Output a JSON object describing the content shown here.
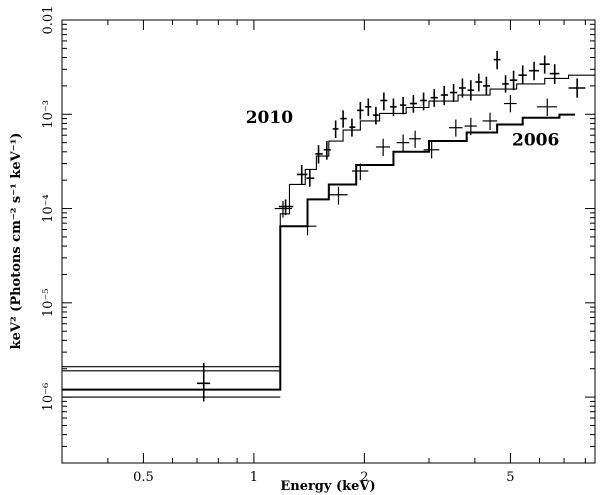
{
  "chart_data": {
    "type": "scatter",
    "title": "",
    "xlabel": "Energy (keV)",
    "ylabel": "keV² (Photons cm⁻² s⁻¹ keV⁻¹)",
    "xscale": "log",
    "yscale": "log",
    "xlim": [
      0.3,
      8.5
    ],
    "ylim": [
      2e-07,
      0.01
    ],
    "x_ticks": [
      {
        "value": 0.5,
        "label": "0.5"
      },
      {
        "value": 1,
        "label": "1"
      },
      {
        "value": 2,
        "label": "2"
      },
      {
        "value": 5,
        "label": "5"
      }
    ],
    "y_ticks": [
      {
        "value": 1e-06,
        "label": "10⁻⁶"
      },
      {
        "value": 1e-05,
        "label": "10⁻⁵"
      },
      {
        "value": 0.0001,
        "label": "10⁻⁴"
      },
      {
        "value": 0.001,
        "label": "10⁻³"
      },
      {
        "value": 0.01,
        "label": "0.01"
      }
    ],
    "annotations": [
      {
        "text": "2010",
        "x": 0.95,
        "y": 0.00093
      },
      {
        "text": "2006",
        "x": 5.05,
        "y": 0.00054
      }
    ],
    "series": [
      {
        "name": "2010",
        "points": [
          {
            "x": 0.73,
            "y": 1.4e-06,
            "xerr": [
              0.7,
              0.76
            ],
            "yerr": [
              9e-07,
              2.3e-06
            ]
          },
          {
            "x": 1.22,
            "y": 0.000105,
            "xerr": [
              1.17,
              1.28
            ],
            "yerr": [
              8.5e-05,
              0.000125
            ]
          },
          {
            "x": 1.35,
            "y": 0.00023,
            "xerr": [
              1.31,
              1.4
            ],
            "yerr": [
              0.00018,
              0.00029
            ]
          },
          {
            "x": 1.42,
            "y": 0.00021,
            "xerr": [
              1.39,
              1.46
            ],
            "yerr": [
              0.00017,
              0.00026
            ]
          },
          {
            "x": 1.5,
            "y": 0.00038,
            "xerr": [
              1.47,
              1.54
            ],
            "yerr": [
              0.0003,
              0.00047
            ]
          },
          {
            "x": 1.58,
            "y": 0.00042,
            "xerr": [
              1.55,
              1.62
            ],
            "yerr": [
              0.00033,
              0.00052
            ]
          },
          {
            "x": 1.67,
            "y": 0.0007,
            "xerr": [
              1.64,
              1.7
            ],
            "yerr": [
              0.00056,
              0.00086
            ]
          },
          {
            "x": 1.75,
            "y": 0.0009,
            "xerr": [
              1.72,
              1.79
            ],
            "yerr": [
              0.00072,
              0.0011
            ]
          },
          {
            "x": 1.85,
            "y": 0.00073,
            "xerr": [
              1.82,
              1.89
            ],
            "yerr": [
              0.00058,
              0.0009
            ]
          },
          {
            "x": 1.95,
            "y": 0.0011,
            "xerr": [
              1.91,
              1.99
            ],
            "yerr": [
              0.00088,
              0.00135
            ]
          },
          {
            "x": 2.05,
            "y": 0.0012,
            "xerr": [
              2.01,
              2.09
            ],
            "yerr": [
              0.00096,
              0.00147
            ]
          },
          {
            "x": 2.15,
            "y": 0.00098,
            "xerr": [
              2.11,
              2.19
            ],
            "yerr": [
              0.00078,
              0.0012
            ]
          },
          {
            "x": 2.26,
            "y": 0.0014,
            "xerr": [
              2.21,
              2.31
            ],
            "yerr": [
              0.0011,
              0.0017
            ]
          },
          {
            "x": 2.4,
            "y": 0.0012,
            "xerr": [
              2.35,
              2.45
            ],
            "yerr": [
              0.00096,
              0.00147
            ]
          },
          {
            "x": 2.55,
            "y": 0.00125,
            "xerr": [
              2.5,
              2.6
            ],
            "yerr": [
              0.001,
              0.00153
            ]
          },
          {
            "x": 2.72,
            "y": 0.0013,
            "xerr": [
              2.66,
              2.78
            ],
            "yerr": [
              0.00104,
              0.0016
            ]
          },
          {
            "x": 2.9,
            "y": 0.0014,
            "xerr": [
              2.84,
              2.96
            ],
            "yerr": [
              0.0011,
              0.0017
            ]
          },
          {
            "x": 3.1,
            "y": 0.0015,
            "xerr": [
              3.03,
              3.17
            ],
            "yerr": [
              0.0012,
              0.00185
            ]
          },
          {
            "x": 3.3,
            "y": 0.0016,
            "xerr": [
              3.23,
              3.38
            ],
            "yerr": [
              0.00125,
              0.002
            ]
          },
          {
            "x": 3.5,
            "y": 0.0017,
            "xerr": [
              3.42,
              3.58
            ],
            "yerr": [
              0.00135,
              0.0021
            ]
          },
          {
            "x": 3.7,
            "y": 0.0019,
            "xerr": [
              3.62,
              3.78
            ],
            "yerr": [
              0.0015,
              0.0024
            ]
          },
          {
            "x": 3.9,
            "y": 0.0018,
            "xerr": [
              3.82,
              3.98
            ],
            "yerr": [
              0.0014,
              0.0023
            ]
          },
          {
            "x": 4.1,
            "y": 0.0022,
            "xerr": [
              4.01,
              4.19
            ],
            "yerr": [
              0.00175,
              0.0027
            ]
          },
          {
            "x": 4.3,
            "y": 0.002,
            "xerr": [
              4.21,
              4.4
            ],
            "yerr": [
              0.0016,
              0.0025
            ]
          },
          {
            "x": 4.6,
            "y": 0.0038,
            "xerr": [
              4.5,
              4.7
            ],
            "yerr": [
              0.003,
              0.0047
            ]
          },
          {
            "x": 4.85,
            "y": 0.0021,
            "xerr": [
              4.75,
              4.95
            ],
            "yerr": [
              0.0017,
              0.0026
            ]
          },
          {
            "x": 5.1,
            "y": 0.0023,
            "xerr": [
              4.98,
              5.22
            ],
            "yerr": [
              0.0018,
              0.0029
            ]
          },
          {
            "x": 5.4,
            "y": 0.0026,
            "xerr": [
              5.26,
              5.54
            ],
            "yerr": [
              0.0021,
              0.0033
            ]
          },
          {
            "x": 5.8,
            "y": 0.0029,
            "xerr": [
              5.62,
              5.98
            ],
            "yerr": [
              0.0023,
              0.0036
            ]
          },
          {
            "x": 6.2,
            "y": 0.0034,
            "xerr": [
              6.0,
              6.4
            ],
            "yerr": [
              0.0027,
              0.0042
            ]
          },
          {
            "x": 6.6,
            "y": 0.0027,
            "xerr": [
              6.4,
              6.8
            ],
            "yerr": [
              0.0021,
              0.0034
            ]
          },
          {
            "x": 7.6,
            "y": 0.0019,
            "xerr": [
              7.2,
              8.0
            ],
            "yerr": [
              0.0015,
              0.0024
            ]
          }
        ],
        "model": [
          {
            "x0": 0.3,
            "x1": 1.18,
            "y": 1.9e-06
          },
          {
            "x0": 1.18,
            "x1": 1.25,
            "y": 8.8e-05
          },
          {
            "x0": 1.25,
            "x1": 1.38,
            "y": 0.00018
          },
          {
            "x0": 1.38,
            "x1": 1.48,
            "y": 0.00026
          },
          {
            "x0": 1.48,
            "x1": 1.6,
            "y": 0.00036
          },
          {
            "x0": 1.6,
            "x1": 1.75,
            "y": 0.00052
          },
          {
            "x0": 1.75,
            "x1": 1.95,
            "y": 0.00068
          },
          {
            "x0": 1.95,
            "x1": 2.2,
            "y": 0.00085
          },
          {
            "x0": 2.2,
            "x1": 2.6,
            "y": 0.00102
          },
          {
            "x0": 2.6,
            "x1": 3.0,
            "y": 0.00118
          },
          {
            "x0": 3.0,
            "x1": 3.6,
            "y": 0.00138
          },
          {
            "x0": 3.6,
            "x1": 4.4,
            "y": 0.0016
          },
          {
            "x0": 4.4,
            "x1": 5.2,
            "y": 0.00185
          },
          {
            "x0": 5.2,
            "x1": 6.2,
            "y": 0.0021
          },
          {
            "x0": 6.2,
            "x1": 7.2,
            "y": 0.0024
          },
          {
            "x0": 7.2,
            "x1": 8.5,
            "y": 0.0026
          }
        ]
      },
      {
        "name": "2006",
        "points": [
          {
            "x": 1.2,
            "y": 0.0001,
            "xerr": [
              1.14,
              1.27
            ],
            "yerr": [
              8e-05,
              0.00012
            ]
          },
          {
            "x": 1.4,
            "y": 6.5e-05,
            "xerr": [
              1.32,
              1.48
            ],
            "yerr": [
              5.2e-05,
              8e-05
            ]
          },
          {
            "x": 1.7,
            "y": 0.00014,
            "xerr": [
              1.6,
              1.8
            ],
            "yerr": [
              0.00011,
              0.00017
            ]
          },
          {
            "x": 1.95,
            "y": 0.00025,
            "xerr": [
              1.85,
              2.05
            ],
            "yerr": [
              0.0002,
              0.0003
            ]
          },
          {
            "x": 2.25,
            "y": 0.00045,
            "xerr": [
              2.15,
              2.35
            ],
            "yerr": [
              0.00036,
              0.00055
            ]
          },
          {
            "x": 2.55,
            "y": 0.0005,
            "xerr": [
              2.45,
              2.65
            ],
            "yerr": [
              0.0004,
              0.00061
            ]
          },
          {
            "x": 2.75,
            "y": 0.00055,
            "xerr": [
              2.65,
              2.85
            ],
            "yerr": [
              0.00044,
              0.00067
            ]
          },
          {
            "x": 3.05,
            "y": 0.00042,
            "xerr": [
              2.9,
              3.2
            ],
            "yerr": [
              0.00034,
              0.00052
            ]
          },
          {
            "x": 3.55,
            "y": 0.00072,
            "xerr": [
              3.4,
              3.7
            ],
            "yerr": [
              0.00058,
              0.00088
            ]
          },
          {
            "x": 3.9,
            "y": 0.00075,
            "xerr": [
              3.75,
              4.05
            ],
            "yerr": [
              0.0006,
              0.00092
            ]
          },
          {
            "x": 4.4,
            "y": 0.00085,
            "xerr": [
              4.2,
              4.6
            ],
            "yerr": [
              0.00068,
              0.00104
            ]
          },
          {
            "x": 5.0,
            "y": 0.0013,
            "xerr": [
              4.8,
              5.2
            ],
            "yerr": [
              0.00105,
              0.0016
            ]
          },
          {
            "x": 6.3,
            "y": 0.0012,
            "xerr": [
              5.9,
              6.7
            ],
            "yerr": [
              0.00096,
              0.00147
            ]
          }
        ],
        "model": [
          {
            "x0": 0.3,
            "x1": 1.18,
            "y": 1.2e-06
          },
          {
            "x0": 1.18,
            "x1": 1.4,
            "y": 6.5e-05
          },
          {
            "x0": 1.4,
            "x1": 1.6,
            "y": 0.000125
          },
          {
            "x0": 1.6,
            "x1": 1.9,
            "y": 0.00018
          },
          {
            "x0": 1.9,
            "x1": 2.4,
            "y": 0.00029
          },
          {
            "x0": 2.4,
            "x1": 3.0,
            "y": 0.0004
          },
          {
            "x0": 3.0,
            "x1": 3.8,
            "y": 0.00052
          },
          {
            "x0": 3.8,
            "x1": 4.6,
            "y": 0.00064
          },
          {
            "x0": 4.6,
            "x1": 5.4,
            "y": 0.00078
          },
          {
            "x0": 5.4,
            "x1": 6.8,
            "y": 0.00092
          },
          {
            "x0": 6.8,
            "x1": 7.5,
            "y": 0.00099
          }
        ]
      }
    ],
    "extra_model_levels": [
      {
        "name": "upper-bound",
        "y": 2.1e-06,
        "x0": 0.3,
        "x1": 1.18
      },
      {
        "name": "lower-bound",
        "y": 1e-06,
        "x0": 0.3,
        "x1": 1.18
      }
    ]
  }
}
